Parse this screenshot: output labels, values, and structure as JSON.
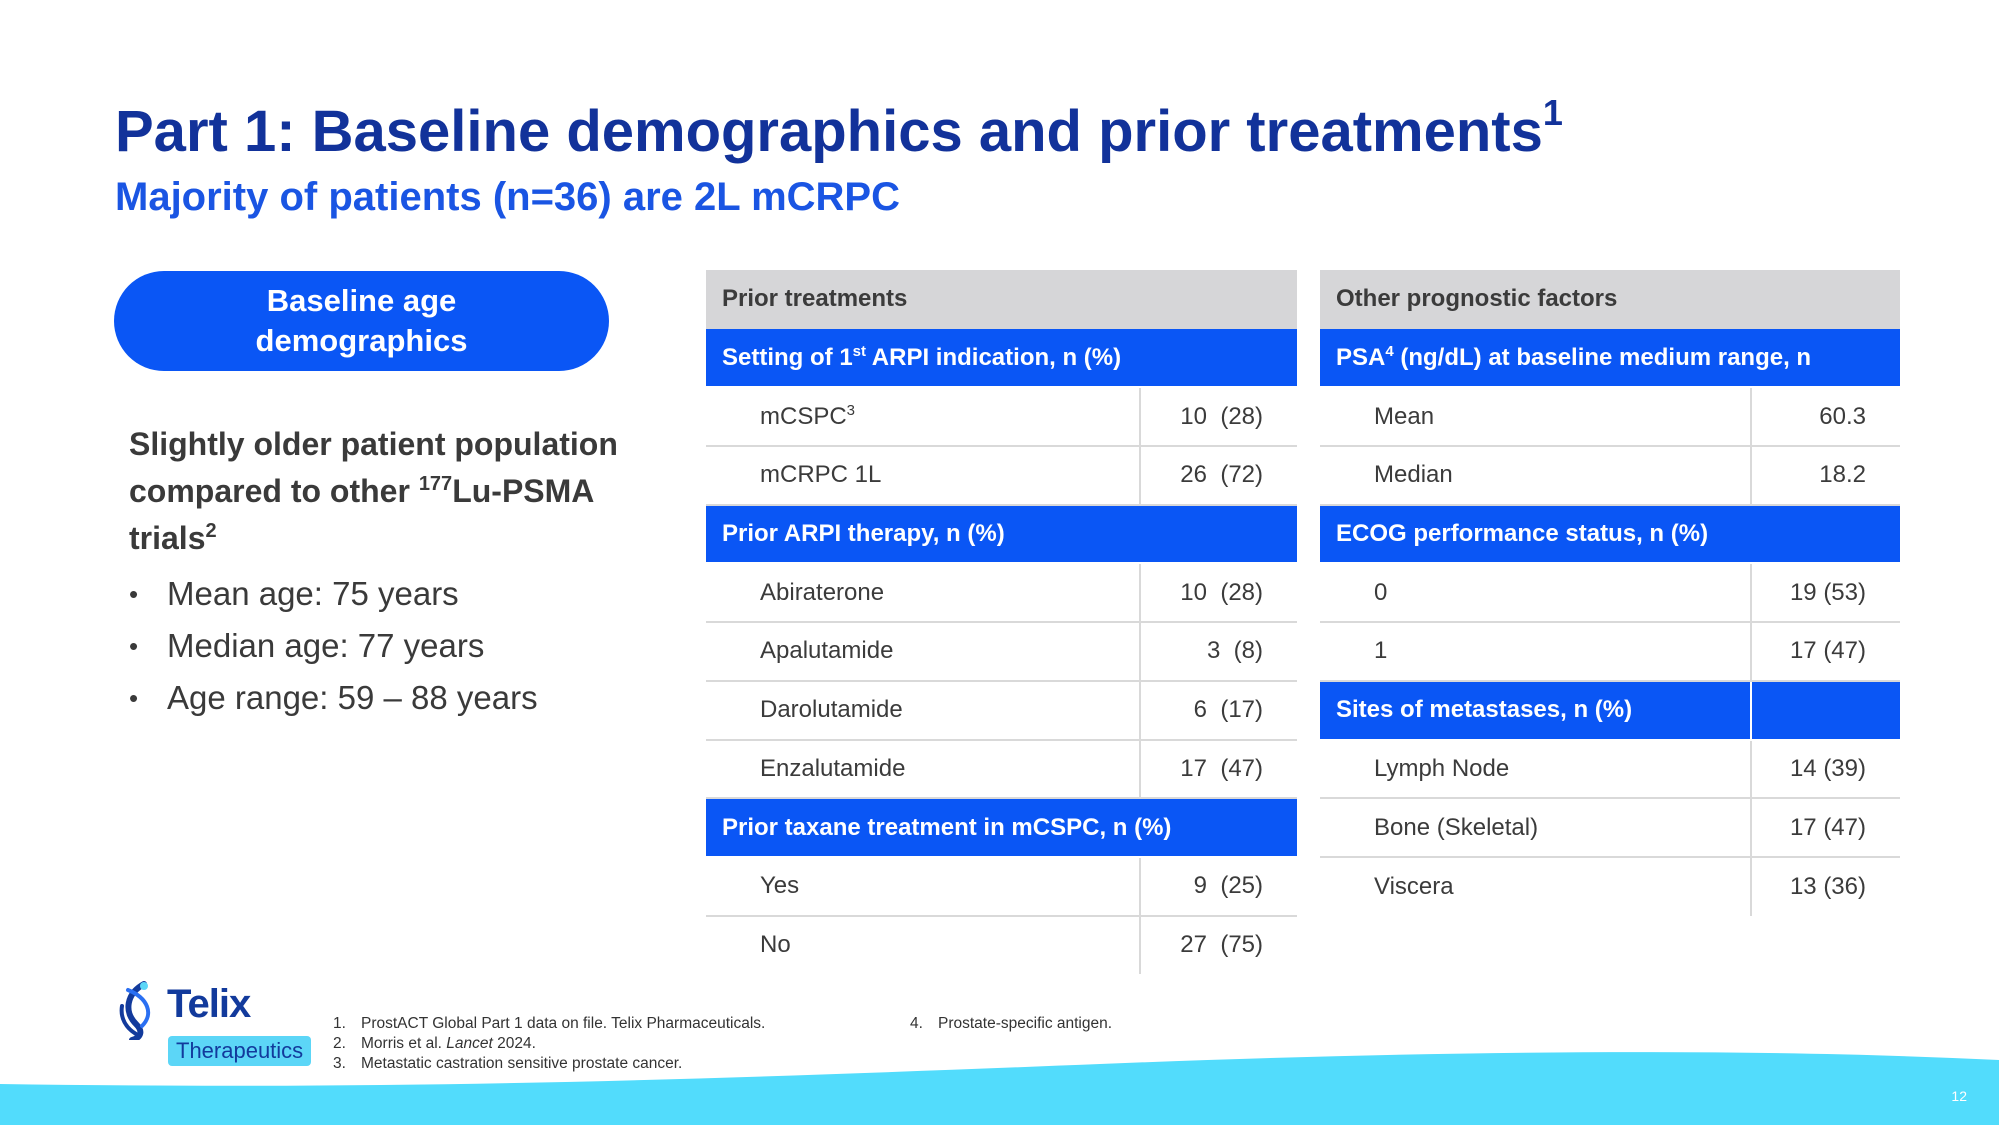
{
  "title": "Part 1: Baseline demographics and prior treatments",
  "title_sup": "1",
  "subtitle": "Majority of patients (n=36) are 2L mCRPC",
  "pill": {
    "line1": "Baseline age",
    "line2": "demographics"
  },
  "lead": {
    "part1": "Slightly older patient population compared to other ",
    "sup_isotope": "177",
    "part2": "Lu-PSMA trials",
    "sup_ref": "2"
  },
  "bullets": [
    "Mean age: 75 years",
    "Median age: 77 years",
    "Age range: 59 – 88 years"
  ],
  "prior": {
    "header": "Prior treatments",
    "sec1": {
      "pre": "Setting of 1",
      "sup": "st",
      "post": " ARPI indication, n (%)"
    },
    "rows1": [
      {
        "label": "mCSPC",
        "sup": "3",
        "value": "10  (28)"
      },
      {
        "label": "mCRPC 1L",
        "value": "26  (72)"
      }
    ],
    "sec2": "Prior ARPI therapy, n (%)",
    "rows2": [
      {
        "label": "Abiraterone",
        "value": "10  (28)"
      },
      {
        "label": "Apalutamide",
        "value": "3  (8)"
      },
      {
        "label": "Darolutamide",
        "value": "6  (17)"
      },
      {
        "label": "Enzalutamide",
        "value": "17  (47)"
      }
    ],
    "sec3": "Prior taxane treatment in mCSPC, n (%)",
    "rows3": [
      {
        "label": "Yes",
        "value": "9  (25)"
      },
      {
        "label": "No",
        "value": "27  (75)"
      }
    ]
  },
  "other": {
    "header": "Other prognostic factors",
    "sec1": {
      "pre": "PSA",
      "sup": "4",
      "post": " (ng/dL) at baseline medium range, n"
    },
    "rows1": [
      {
        "label": "Mean",
        "value": "60.3"
      },
      {
        "label": "Median",
        "value": "18.2"
      }
    ],
    "sec2": "ECOG performance status, n (%)",
    "rows2": [
      {
        "label": "0",
        "value": "19 (53)"
      },
      {
        "label": "1",
        "value": "17 (47)"
      }
    ],
    "sec3": "Sites of metastases, n (%)",
    "rows3": [
      {
        "label": "Lymph Node",
        "value": "14 (39)"
      },
      {
        "label": "Bone (Skeletal)",
        "value": "17 (47)"
      },
      {
        "label": "Viscera",
        "value": "13 (36)"
      }
    ]
  },
  "logo": {
    "word": "Telix",
    "tag": "Therapeutics"
  },
  "footnotes": [
    {
      "num": "1.",
      "text": "ProstACT Global Part 1 data on file. Telix Pharmaceuticals."
    },
    {
      "num": "2.",
      "pre": "Morris et al. ",
      "italic": "Lancet",
      "post": " 2024."
    },
    {
      "num": "3.",
      "text": "Metastatic castration sensitive prostate cancer."
    },
    {
      "num": "4.",
      "text": "Prostate-specific antigen."
    }
  ],
  "page_number": "12",
  "colors": {
    "navy": "#12329a",
    "blue": "#0a56f5",
    "subtitle_blue": "#1a55e3",
    "header_gray": "#d6d6d8",
    "cyan": "#52dcfc"
  }
}
